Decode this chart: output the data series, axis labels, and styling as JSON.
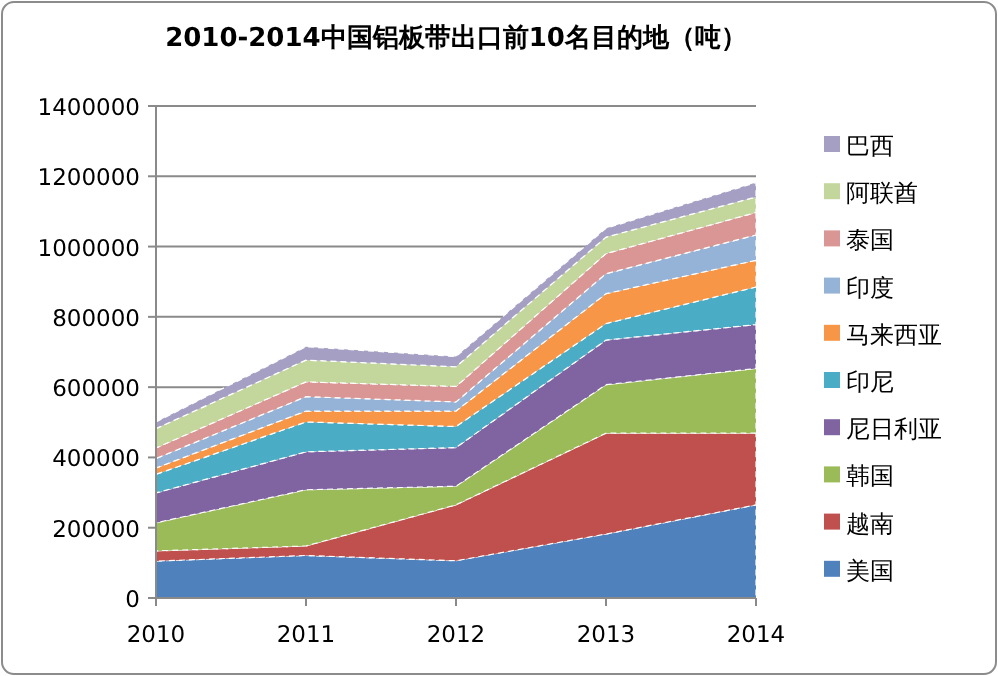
{
  "chart_data": {
    "type": "area",
    "title": "2010-2014中国铝板带出口前10名目的地（吨）",
    "categories": [
      "2010",
      "2011",
      "2012",
      "2013",
      "2014"
    ],
    "stacked": true,
    "ylim": [
      0,
      1400000
    ],
    "yticks": [
      0,
      200000,
      400000,
      600000,
      800000,
      1000000,
      1200000,
      1400000
    ],
    "grid": "y",
    "legend": "right",
    "series": [
      {
        "name": "美国",
        "color": "#4f81bd",
        "values": [
          105000,
          121000,
          106000,
          182000,
          265000
        ]
      },
      {
        "name": "越南",
        "color": "#c0504d",
        "values": [
          29000,
          27000,
          159000,
          287000,
          204000
        ]
      },
      {
        "name": "韩国",
        "color": "#9bbb59",
        "values": [
          80000,
          160000,
          53000,
          138000,
          184000
        ]
      },
      {
        "name": "尼日利亚",
        "color": "#8064a2",
        "values": [
          85000,
          108000,
          110000,
          127000,
          125000
        ]
      },
      {
        "name": "印尼",
        "color": "#4bacc6",
        "values": [
          53000,
          85000,
          60000,
          47000,
          107000
        ]
      },
      {
        "name": "马来西亚",
        "color": "#f79646",
        "values": [
          18000,
          31000,
          44000,
          85000,
          76000
        ]
      },
      {
        "name": "印度",
        "color": "#95b3d7",
        "values": [
          27000,
          41000,
          26000,
          57000,
          72000
        ]
      },
      {
        "name": "泰国",
        "color": "#da9694",
        "values": [
          30000,
          42000,
          44000,
          57000,
          64000
        ]
      },
      {
        "name": "阿联酋",
        "color": "#c3d69b",
        "values": [
          55000,
          62000,
          56000,
          47000,
          44000
        ]
      },
      {
        "name": "巴西",
        "color": "#a5a0c3",
        "values": [
          19000,
          38000,
          29000,
          25000,
          41000
        ]
      }
    ]
  }
}
